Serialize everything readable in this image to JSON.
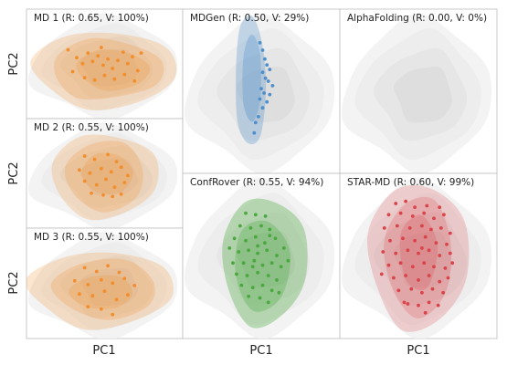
{
  "chart_data": [
    {
      "type": "scatter",
      "id": "md1",
      "title": "MD 1 (R: 0.65, V: 100%)",
      "ylabel": "PC2",
      "xlabel": "",
      "color": "#f28e2b",
      "points": [
        [
          -0.55,
          0.35
        ],
        [
          -0.42,
          0.18
        ],
        [
          -0.33,
          0.05
        ],
        [
          -0.25,
          0.28
        ],
        [
          -0.18,
          0.1
        ],
        [
          -0.1,
          0.22
        ],
        [
          -0.02,
          0.02
        ],
        [
          0.05,
          0.15
        ],
        [
          0.12,
          -0.05
        ],
        [
          0.2,
          0.12
        ],
        [
          0.28,
          0.3
        ],
        [
          0.35,
          0.05
        ],
        [
          0.42,
          0.2
        ],
        [
          0.5,
          -0.1
        ],
        [
          -0.48,
          -0.12
        ],
        [
          -0.3,
          -0.25
        ],
        [
          -0.15,
          -0.3
        ],
        [
          0.0,
          -0.2
        ],
        [
          0.15,
          -0.28
        ],
        [
          0.3,
          -0.18
        ],
        [
          0.45,
          -0.32
        ],
        [
          0.55,
          0.28
        ],
        [
          -0.05,
          0.4
        ]
      ],
      "xlim": [
        -1,
        1
      ],
      "ylim": [
        -1,
        1
      ]
    },
    {
      "type": "scatter",
      "id": "md2",
      "title": "MD 2 (R: 0.55, V: 100%)",
      "ylabel": "PC2",
      "xlabel": "",
      "color": "#f28e2b",
      "points": [
        [
          -0.3,
          0.42
        ],
        [
          -0.15,
          0.35
        ],
        [
          0.05,
          0.45
        ],
        [
          0.18,
          0.3
        ],
        [
          -0.38,
          0.12
        ],
        [
          -0.22,
          0.05
        ],
        [
          -0.05,
          0.15
        ],
        [
          0.1,
          0.08
        ],
        [
          0.25,
          0.18
        ],
        [
          0.35,
          0.0
        ],
        [
          -0.3,
          -0.12
        ],
        [
          -0.12,
          -0.2
        ],
        [
          0.02,
          -0.08
        ],
        [
          0.15,
          -0.25
        ],
        [
          0.3,
          -0.15
        ],
        [
          -0.2,
          -0.38
        ],
        [
          -0.02,
          -0.42
        ],
        [
          0.12,
          -0.45
        ],
        [
          0.25,
          -0.4
        ]
      ],
      "xlim": [
        -1,
        1
      ],
      "ylim": [
        -1,
        1
      ]
    },
    {
      "type": "scatter",
      "id": "md3",
      "title": "MD 3 (R: 0.55, V: 100%)",
      "ylabel": "PC2",
      "xlabel": "PC1",
      "color": "#f28e2b",
      "points": [
        [
          -0.3,
          0.38
        ],
        [
          -0.12,
          0.3
        ],
        [
          0.05,
          0.42
        ],
        [
          0.22,
          0.28
        ],
        [
          -0.45,
          0.1
        ],
        [
          -0.25,
          0.02
        ],
        [
          -0.05,
          0.12
        ],
        [
          0.12,
          0.05
        ],
        [
          0.3,
          0.15
        ],
        [
          0.45,
          0.0
        ],
        [
          -0.38,
          -0.18
        ],
        [
          -0.18,
          -0.22
        ],
        [
          0.0,
          -0.12
        ],
        [
          0.18,
          -0.3
        ],
        [
          0.35,
          -0.2
        ],
        [
          -0.25,
          -0.45
        ],
        [
          -0.05,
          -0.5
        ],
        [
          0.12,
          -0.62
        ]
      ],
      "xlim": [
        -1,
        1
      ],
      "ylim": [
        -1,
        1
      ]
    },
    {
      "type": "scatter",
      "id": "mdgen",
      "title": "MDGen (R: 0.50, V: 29%)",
      "ylabel": "",
      "xlabel": "",
      "color": "#4e8ecb",
      "points": [
        [
          -0.02,
          0.7
        ],
        [
          0.02,
          0.6
        ],
        [
          0.05,
          0.48
        ],
        [
          0.08,
          0.4
        ],
        [
          0.12,
          0.34
        ],
        [
          0.02,
          0.3
        ],
        [
          0.06,
          0.22
        ],
        [
          0.1,
          0.18
        ],
        [
          0.16,
          0.12
        ],
        [
          0.0,
          0.08
        ],
        [
          0.04,
          0.02
        ],
        [
          0.12,
          0.0
        ],
        [
          -0.02,
          -0.06
        ],
        [
          0.08,
          -0.1
        ],
        [
          0.02,
          -0.18
        ],
        [
          -0.04,
          -0.3
        ],
        [
          -0.08,
          -0.38
        ],
        [
          -0.1,
          -0.52
        ]
      ],
      "xlim": [
        -1,
        1
      ],
      "ylim": [
        -1,
        1
      ]
    },
    {
      "type": "scatter",
      "id": "alphafolding",
      "title": "AlphaFolding (R: 0.00, V: 0%)",
      "ylabel": "",
      "xlabel": "",
      "color": "#999999",
      "points": [],
      "xlim": [
        -1,
        1
      ],
      "ylim": [
        -1,
        1
      ]
    },
    {
      "type": "scatter",
      "id": "confrover",
      "title": "ConfRover (R: 0.55, V: 94%)",
      "ylabel": "",
      "xlabel": "PC1",
      "color": "#4aa83f",
      "points": [
        [
          -0.22,
          0.62
        ],
        [
          -0.08,
          0.6
        ],
        [
          0.06,
          0.58
        ],
        [
          -0.3,
          0.45
        ],
        [
          -0.15,
          0.42
        ],
        [
          0.0,
          0.45
        ],
        [
          0.12,
          0.4
        ],
        [
          -0.38,
          0.28
        ],
        [
          -0.22,
          0.25
        ],
        [
          -0.08,
          0.3
        ],
        [
          0.05,
          0.22
        ],
        [
          0.2,
          0.28
        ],
        [
          -0.32,
          0.1
        ],
        [
          -0.18,
          0.12
        ],
        [
          -0.05,
          0.08
        ],
        [
          0.08,
          0.12
        ],
        [
          0.22,
          0.05
        ],
        [
          0.32,
          0.15
        ],
        [
          -0.4,
          -0.05
        ],
        [
          -0.25,
          -0.05
        ],
        [
          -0.1,
          -0.02
        ],
        [
          0.02,
          -0.08
        ],
        [
          0.15,
          -0.05
        ],
        [
          0.28,
          -0.1
        ],
        [
          -0.35,
          -0.2
        ],
        [
          -0.2,
          -0.22
        ],
        [
          -0.05,
          -0.18
        ],
        [
          0.1,
          -0.22
        ],
        [
          0.22,
          -0.28
        ],
        [
          -0.28,
          -0.35
        ],
        [
          -0.12,
          -0.38
        ],
        [
          0.02,
          -0.35
        ],
        [
          0.15,
          -0.42
        ],
        [
          -0.18,
          -0.5
        ],
        [
          -0.02,
          -0.52
        ],
        [
          0.1,
          -0.58
        ],
        [
          0.25,
          -0.45
        ],
        [
          -0.45,
          0.15
        ],
        [
          0.38,
          -0.02
        ],
        [
          -0.05,
          0.18
        ],
        [
          0.12,
          0.32
        ],
        [
          -0.12,
          -0.1
        ]
      ],
      "xlim": [
        -1,
        1
      ],
      "ylim": [
        -1,
        1
      ]
    },
    {
      "type": "scatter",
      "id": "starmd",
      "title": "STAR-MD (R: 0.60, V: 99%)",
      "ylabel": "",
      "xlabel": "PC1",
      "color": "#d9434a",
      "points": [
        [
          -0.32,
          0.75
        ],
        [
          -0.18,
          0.78
        ],
        [
          0.12,
          0.72
        ],
        [
          0.3,
          0.7
        ],
        [
          -0.42,
          0.6
        ],
        [
          -0.25,
          0.62
        ],
        [
          -0.08,
          0.58
        ],
        [
          0.08,
          0.62
        ],
        [
          0.22,
          0.55
        ],
        [
          0.36,
          0.6
        ],
        [
          -0.48,
          0.42
        ],
        [
          -0.3,
          0.45
        ],
        [
          -0.12,
          0.42
        ],
        [
          0.05,
          0.45
        ],
        [
          0.18,
          0.4
        ],
        [
          0.32,
          0.42
        ],
        [
          0.45,
          0.35
        ],
        [
          -0.4,
          0.25
        ],
        [
          -0.22,
          0.28
        ],
        [
          -0.05,
          0.25
        ],
        [
          0.1,
          0.3
        ],
        [
          0.25,
          0.22
        ],
        [
          0.4,
          0.2
        ],
        [
          -0.5,
          0.1
        ],
        [
          -0.32,
          0.08
        ],
        [
          -0.15,
          0.12
        ],
        [
          0.0,
          0.08
        ],
        [
          0.15,
          0.12
        ],
        [
          0.3,
          0.05
        ],
        [
          0.45,
          0.08
        ],
        [
          -0.42,
          -0.08
        ],
        [
          -0.25,
          -0.05
        ],
        [
          -0.08,
          -0.1
        ],
        [
          0.08,
          -0.05
        ],
        [
          0.22,
          -0.1
        ],
        [
          0.38,
          -0.12
        ],
        [
          -0.35,
          -0.25
        ],
        [
          -0.18,
          -0.22
        ],
        [
          0.0,
          -0.28
        ],
        [
          0.15,
          -0.22
        ],
        [
          0.3,
          -0.3
        ],
        [
          0.42,
          -0.25
        ],
        [
          -0.28,
          -0.42
        ],
        [
          -0.1,
          -0.4
        ],
        [
          0.05,
          -0.45
        ],
        [
          0.2,
          -0.4
        ],
        [
          0.35,
          -0.45
        ],
        [
          -0.2,
          -0.58
        ],
        [
          0.0,
          -0.62
        ],
        [
          0.15,
          -0.58
        ],
        [
          0.28,
          -0.62
        ],
        [
          -0.05,
          0.7
        ],
        [
          0.48,
          -0.05
        ],
        [
          -0.52,
          -0.2
        ],
        [
          0.05,
          0.15
        ],
        [
          -0.15,
          -0.6
        ],
        [
          0.1,
          -0.72
        ]
      ],
      "xlim": [
        -1,
        1
      ],
      "ylim": [
        -1,
        1
      ]
    }
  ]
}
